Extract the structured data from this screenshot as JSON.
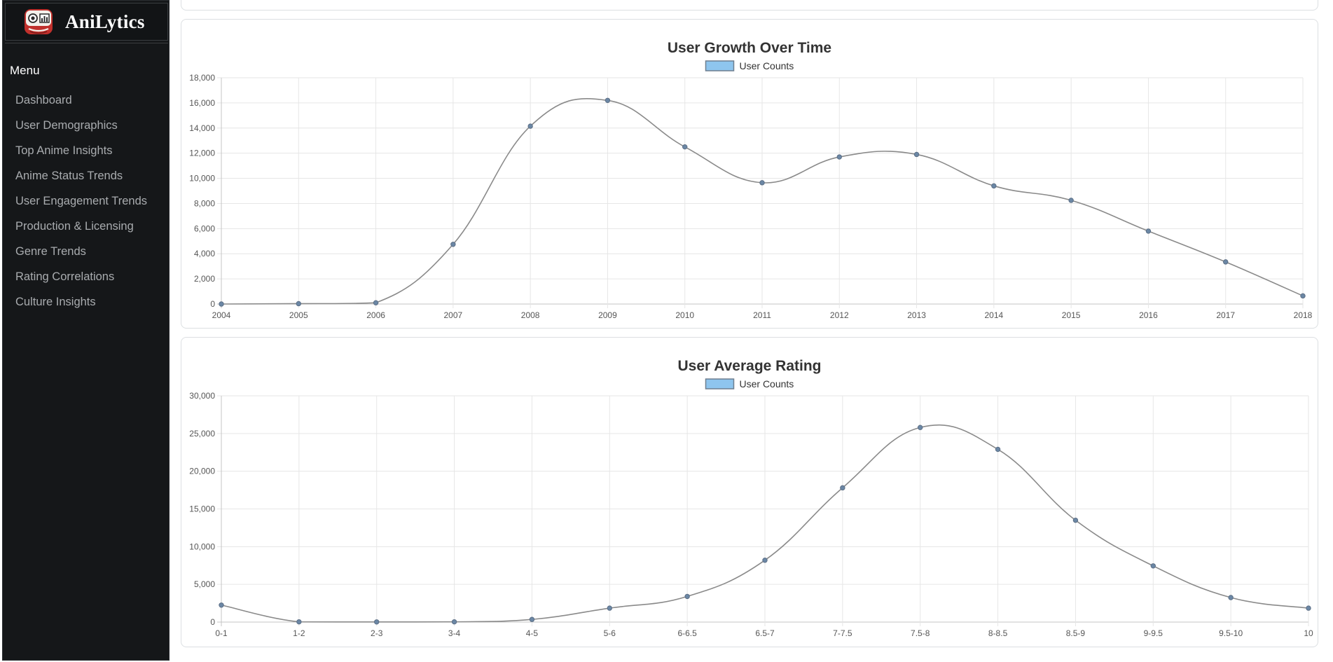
{
  "app": {
    "name": "AniLytics"
  },
  "sidebar": {
    "menu_title": "Menu",
    "items": [
      {
        "label": "Dashboard"
      },
      {
        "label": "User Demographics"
      },
      {
        "label": "Top Anime Insights"
      },
      {
        "label": "Anime Status Trends"
      },
      {
        "label": "User Engagement Trends"
      },
      {
        "label": "Production & Licensing"
      },
      {
        "label": "Genre Trends"
      },
      {
        "label": "Rating Correlations"
      },
      {
        "label": "Culture Insights"
      }
    ]
  },
  "colors": {
    "sidebar_bg": "#151719",
    "menu_text": "#a9acaf",
    "line": "#8a8a8a",
    "point": "#6b87a5",
    "legend_fill": "#8ec5ee"
  },
  "chart_data": [
    {
      "type": "line",
      "title": "User Growth Over Time",
      "categories": [
        "2004",
        "2005",
        "2006",
        "2007",
        "2008",
        "2009",
        "2010",
        "2011",
        "2012",
        "2013",
        "2014",
        "2015",
        "2016",
        "2017",
        "2018"
      ],
      "series": [
        {
          "name": "User Counts",
          "values": [
            0,
            30,
            100,
            4750,
            14150,
            16200,
            12500,
            9650,
            11700,
            11900,
            9400,
            8250,
            5800,
            3350,
            650
          ]
        }
      ],
      "yticks": [
        "0",
        "2,000",
        "4,000",
        "6,000",
        "8,000",
        "10,000",
        "12,000",
        "14,000",
        "16,000",
        "18,000"
      ],
      "ylim": [
        0,
        18000
      ],
      "grid": true,
      "legend": "top-center"
    },
    {
      "type": "line",
      "title": "User Average Rating",
      "categories": [
        "0-1",
        "1-2",
        "2-3",
        "3-4",
        "4-5",
        "5-6",
        "6-6.5",
        "6.5-7",
        "7-7.5",
        "7.5-8",
        "8-8.5",
        "8.5-9",
        "9-9.5",
        "9.5-10",
        "10"
      ],
      "series": [
        {
          "name": "User Counts",
          "values": [
            2250,
            30,
            20,
            30,
            350,
            1850,
            3400,
            8200,
            17800,
            25800,
            22900,
            13500,
            7450,
            3250,
            1850
          ]
        }
      ],
      "yticks": [
        "0",
        "5,000",
        "10,000",
        "15,000",
        "20,000",
        "25,000",
        "30,000"
      ],
      "ylim": [
        0,
        30000
      ],
      "grid": true,
      "legend": "top-center"
    }
  ]
}
